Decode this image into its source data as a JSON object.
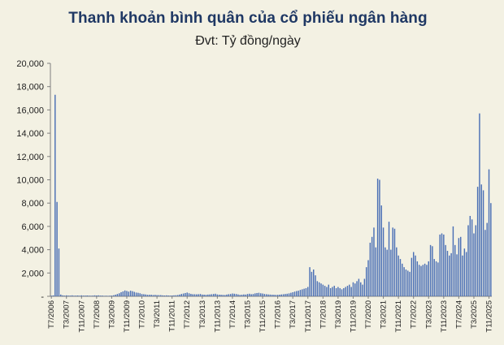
{
  "chart_data": {
    "type": "bar",
    "title": "Thanh khoản bình quân của cổ phiếu ngân hàng",
    "subtitle": "Đvt: Tỷ đồng/ngày",
    "xlabel": "",
    "ylabel": "",
    "ylim": [
      0,
      20000
    ],
    "yticks": [
      0,
      2000,
      4000,
      6000,
      8000,
      10000,
      12000,
      14000,
      16000,
      18000,
      20000
    ],
    "ytick_labels": [
      "-",
      "2,000",
      "4,000",
      "6,000",
      "8,000",
      "10,000",
      "12,000",
      "14,000",
      "16,000",
      "18,000",
      "20,000"
    ],
    "grid": false,
    "legend": "none",
    "bar_color": "#4a6fb5",
    "start_month": "2006-07",
    "x_tick_labels": [
      "T7/2006",
      "T3/2007",
      "T11/2007",
      "T7/2008",
      "T3/2009",
      "T11/2009",
      "T7/2010",
      "T3/2011",
      "T11/2011",
      "T7/2012",
      "T3/2013",
      "T11/2013",
      "T7/2014",
      "T3/2015",
      "T11/2015",
      "T7/2016",
      "T3/2017",
      "T11/2017",
      "T7/2018",
      "T3/2019",
      "T11/2019",
      "T7/2020",
      "T3/2021",
      "T11/2021",
      "T7/2022",
      "T3/2023",
      "T11/2023",
      "T7/2024",
      "T3/2025",
      "T11/2025"
    ],
    "values": [
      50,
      80,
      17300,
      8100,
      4100,
      150,
      80,
      60,
      80,
      60,
      60,
      80,
      50,
      60,
      70,
      50,
      80,
      60,
      60,
      70,
      60,
      50,
      60,
      80,
      70,
      80,
      60,
      60,
      40,
      50,
      40,
      50,
      60,
      90,
      140,
      200,
      260,
      350,
      420,
      500,
      460,
      400,
      480,
      440,
      380,
      320,
      300,
      260,
      200,
      180,
      160,
      130,
      130,
      130,
      110,
      120,
      100,
      100,
      100,
      80,
      70,
      80,
      70,
      60,
      70,
      80,
      90,
      110,
      150,
      200,
      240,
      280,
      320,
      260,
      210,
      180,
      180,
      170,
      180,
      200,
      150,
      140,
      130,
      150,
      160,
      180,
      200,
      220,
      160,
      140,
      130,
      120,
      110,
      150,
      180,
      200,
      240,
      220,
      200,
      160,
      120,
      140,
      160,
      150,
      200,
      220,
      180,
      200,
      250,
      280,
      300,
      260,
      240,
      200,
      180,
      160,
      150,
      140,
      130,
      120,
      130,
      140,
      160,
      180,
      200,
      220,
      250,
      300,
      350,
      400,
      450,
      480,
      550,
      600,
      650,
      700,
      800,
      2500,
      2100,
      2300,
      1800,
      1300,
      1200,
      1100,
      1000,
      900,
      800,
      1000,
      700,
      800,
      900,
      700,
      800,
      700,
      600,
      700,
      800,
      900,
      1000,
      800,
      1200,
      1100,
      1300,
      1500,
      1200,
      1000,
      1500,
      2500,
      3100,
      4600,
      5100,
      5900,
      4200,
      10100,
      10000,
      7800,
      5900,
      4200,
      4000,
      6400,
      4000,
      5900,
      5800,
      4200,
      3500,
      3200,
      2800,
      2500,
      2300,
      2200,
      2100,
      3300,
      3800,
      3500,
      3000,
      2700,
      2600,
      2700,
      2800,
      2700,
      3000,
      4400,
      4300,
      3200,
      3000,
      2900,
      5300,
      5400,
      5300,
      4400,
      3900,
      3500,
      3700,
      6000,
      4400,
      3600,
      5000,
      5100,
      3500,
      4100,
      3800,
      6100,
      6900,
      6600,
      5400,
      6100,
      9400,
      15700,
      9600,
      9100,
      5700,
      6300,
      10900,
      8000
    ]
  }
}
